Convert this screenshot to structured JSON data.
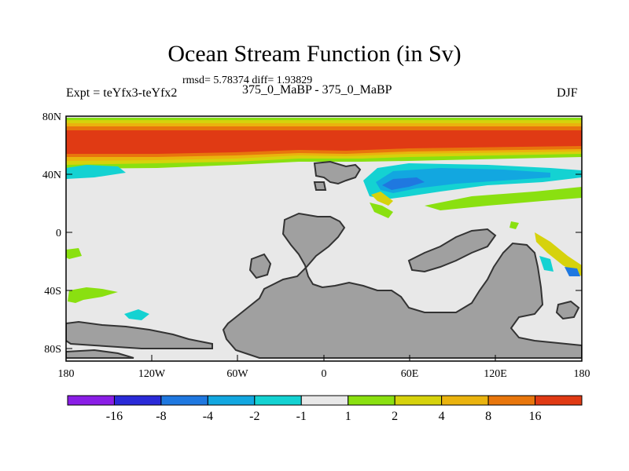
{
  "header": {
    "title": "Ocean Stream Function (in Sv)",
    "stats": "rmsd= 5.78374 diff= 1.93829",
    "expt": "Expt = teYfx3-teYfx2",
    "comparison": "375_0_MaBP - 375_0_MaBP",
    "season": "DJF"
  },
  "axes": {
    "lat_ticks": [
      "80N",
      "40N",
      "0",
      "40S",
      "80S"
    ],
    "lon_ticks": [
      "180",
      "120W",
      "60W",
      "0",
      "60E",
      "120E",
      "180"
    ]
  },
  "legend": {
    "labels": [
      "-16",
      "-8",
      "-4",
      "-2",
      "-1",
      "1",
      "2",
      "4",
      "8",
      "16"
    ],
    "colors": [
      "#8a1ee6",
      "#2a2ad8",
      "#1f78e0",
      "#12a7e0",
      "#14d2d2",
      "#e8e8e8",
      "#8ae010",
      "#d6d20c",
      "#eab30e",
      "#e8760c",
      "#e03a14"
    ]
  },
  "colors": {
    "land": "#a0a0a0",
    "ocean": "#e8e8e8",
    "outline": "#333333"
  }
}
